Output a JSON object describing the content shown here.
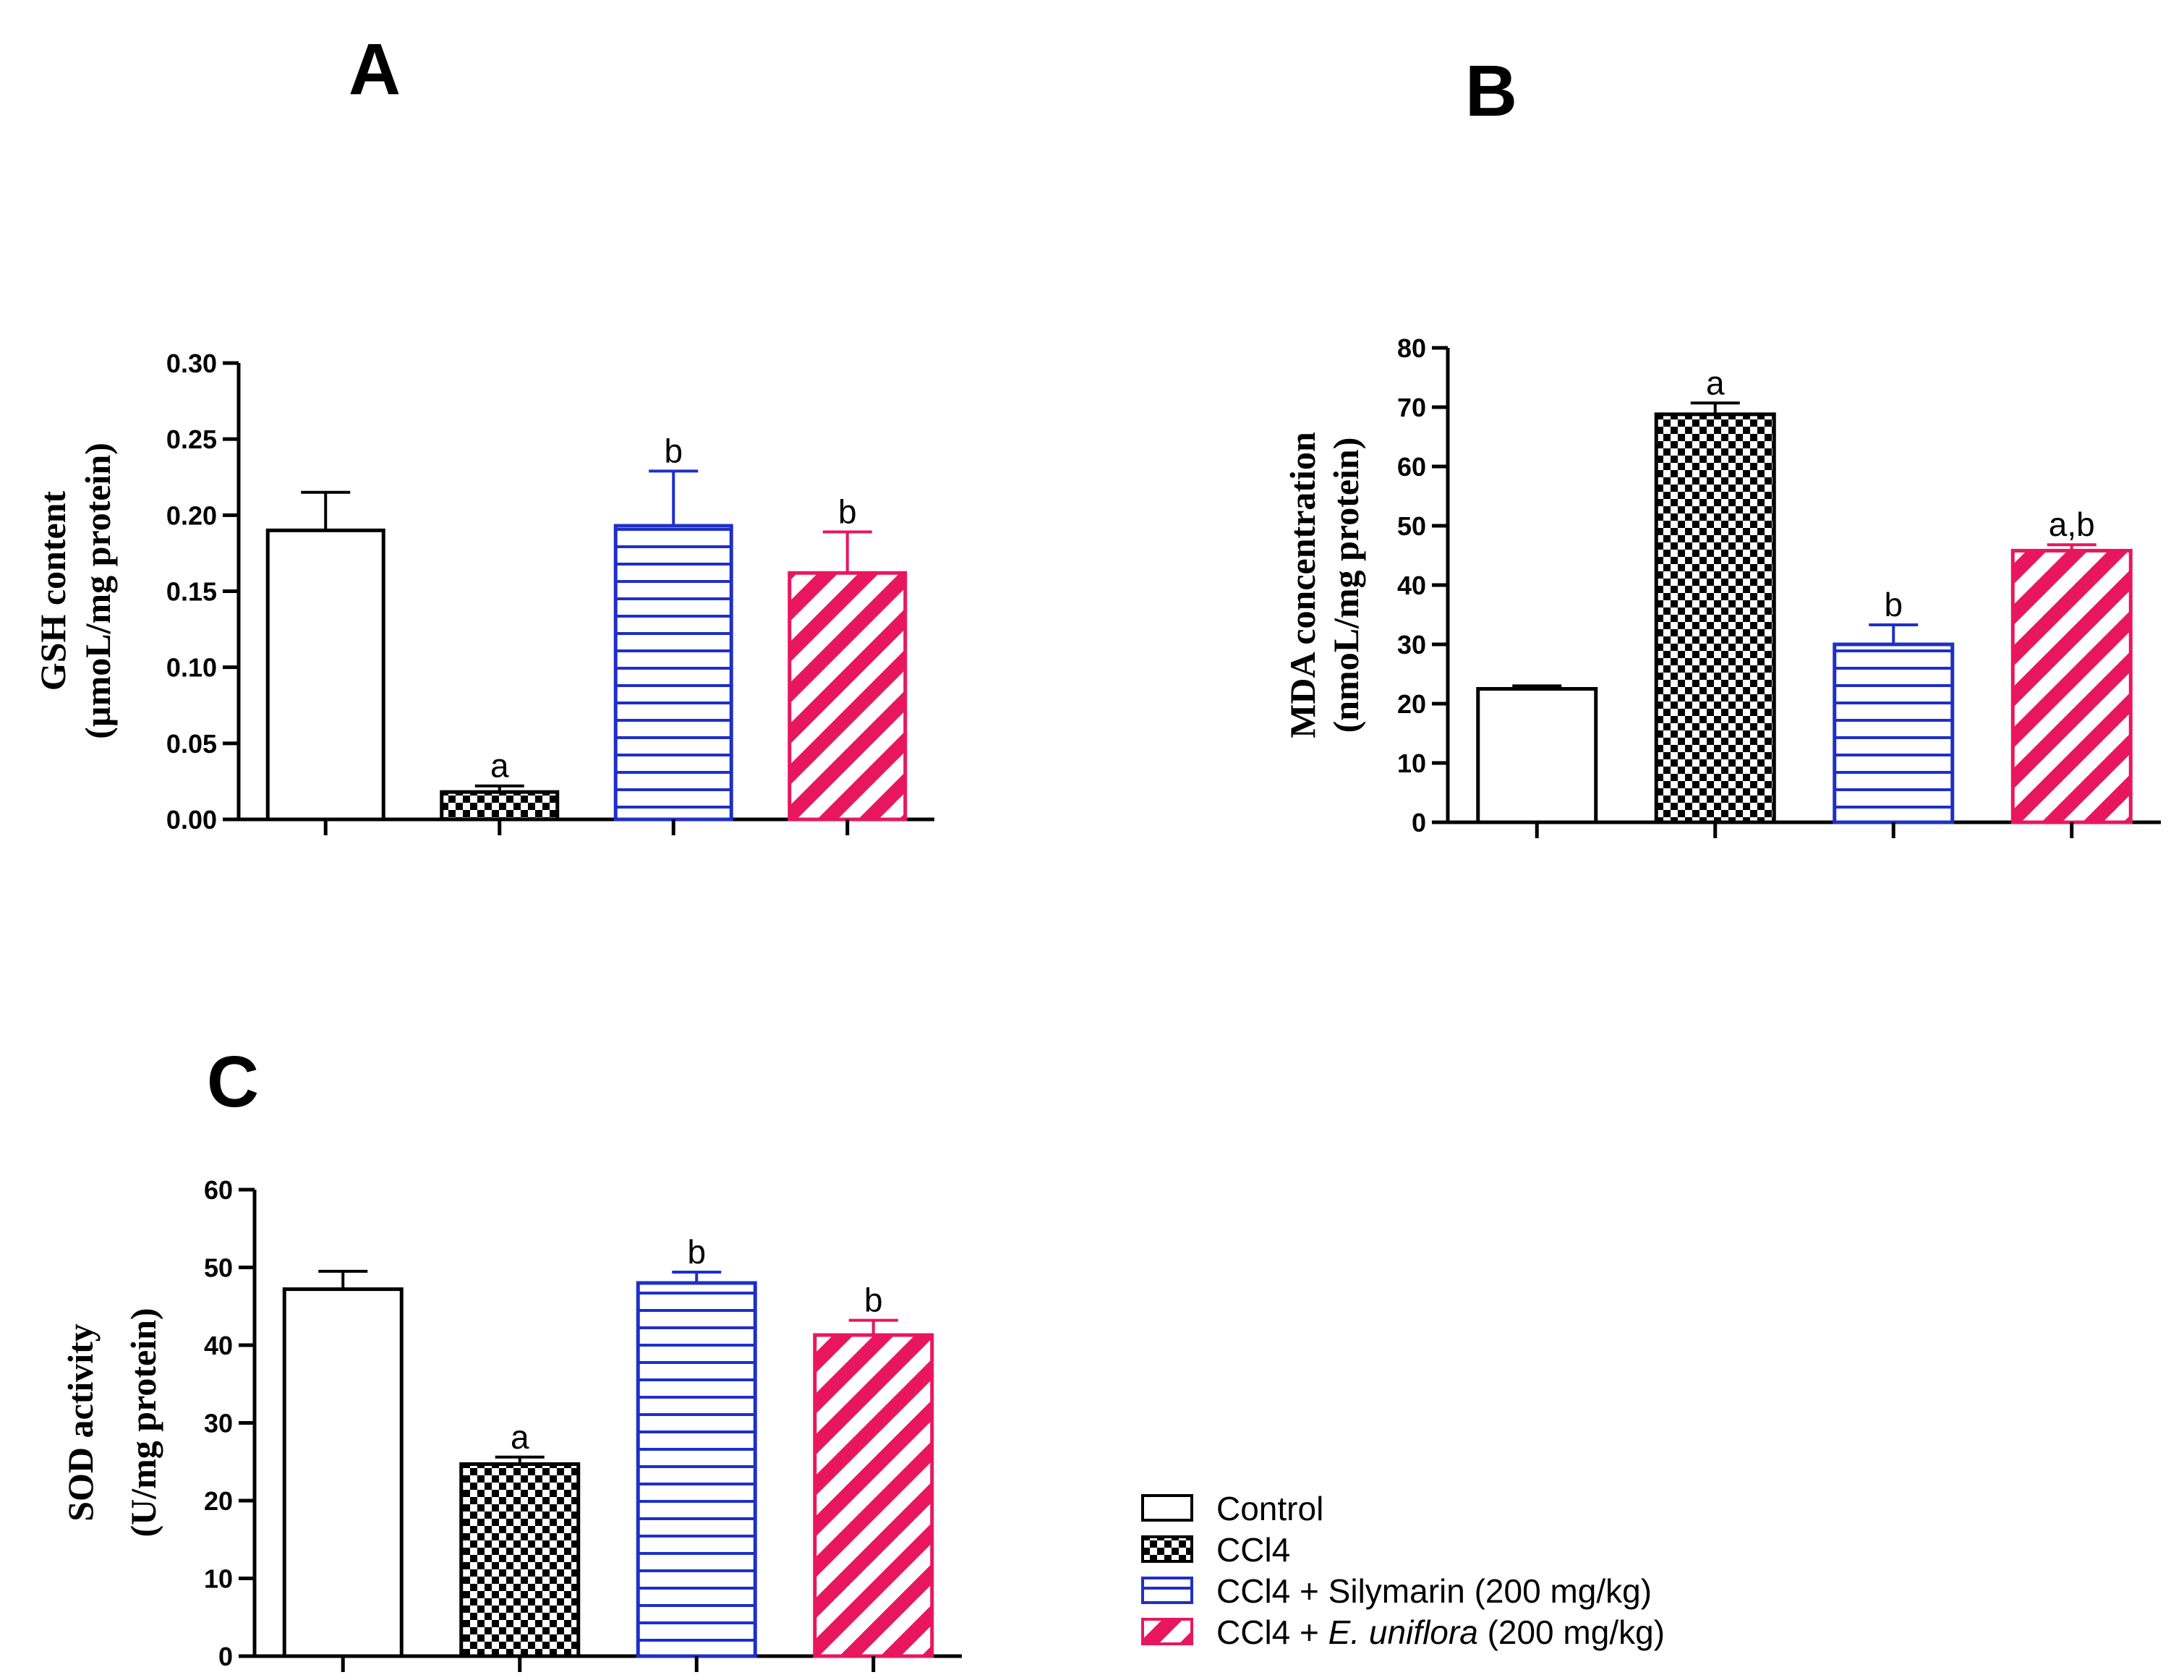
{
  "legend": {
    "entries": [
      {
        "name": "Control",
        "pattern": "none",
        "color": "#000000"
      },
      {
        "name": "CCl4",
        "pattern": "checker",
        "color": "#000000"
      },
      {
        "name": "CCl4 + Silymarin (200 mg/kg)",
        "pattern": "hlines",
        "color": "#1f2fc8"
      },
      {
        "name_prefix": "CCl4 + ",
        "name_italic": "E. uniflora",
        "name_suffix": " (200 mg/kg)",
        "pattern": "diagonal",
        "color": "#e8175d"
      }
    ]
  },
  "chart_data": [
    {
      "type": "bar",
      "panel": "A",
      "title": "",
      "ylabel_line1": "GSH content",
      "ylabel_line2": "(µmoL/mg protein)",
      "ylim": [
        0,
        0.3
      ],
      "yticks": [
        "0.00",
        "0.05",
        "0.10",
        "0.15",
        "0.20",
        "0.25",
        "0.30"
      ],
      "categories": [
        "Control",
        "CCl4",
        "CCl4 + Silymarin (200 mg/kg)",
        "CCl4 + E. uniflora (200 mg/kg)"
      ],
      "values": [
        0.19,
        0.018,
        0.193,
        0.162
      ],
      "errors": [
        0.025,
        0.004,
        0.036,
        0.027
      ],
      "sig_labels": [
        "",
        "a",
        "b",
        "b"
      ]
    },
    {
      "type": "bar",
      "panel": "B",
      "title": "",
      "ylabel_line1": "MDA concentration",
      "ylabel_line2": "(nmoL/mg protein)",
      "ylim": [
        0,
        80
      ],
      "yticks": [
        "0",
        "10",
        "20",
        "30",
        "40",
        "50",
        "60",
        "70",
        "80"
      ],
      "categories": [
        "Control",
        "CCl4",
        "CCl4 + Silymarin (200 mg/kg)",
        "CCl4 + E. uniflora (200 mg/kg)"
      ],
      "values": [
        22.5,
        68.8,
        30.0,
        45.8
      ],
      "errors": [
        0.5,
        1.9,
        3.3,
        1.0
      ],
      "sig_labels": [
        "",
        "a",
        "b",
        "a,b"
      ]
    },
    {
      "type": "bar",
      "panel": "C",
      "title": "",
      "ylabel_line1": "SOD activity",
      "ylabel_line2": "(U/mg protein)",
      "ylim": [
        0,
        60
      ],
      "yticks": [
        "0",
        "10",
        "20",
        "30",
        "40",
        "50",
        "60"
      ],
      "categories": [
        "Control",
        "CCl4",
        "CCl4 + Silymarin (200 mg/kg)",
        "CCl4 + E. uniflora (200 mg/kg)"
      ],
      "values": [
        47.2,
        24.7,
        48.0,
        41.3
      ],
      "errors": [
        2.3,
        0.9,
        1.4,
        1.9
      ],
      "sig_labels": [
        "",
        "a",
        "b",
        "b"
      ]
    }
  ]
}
